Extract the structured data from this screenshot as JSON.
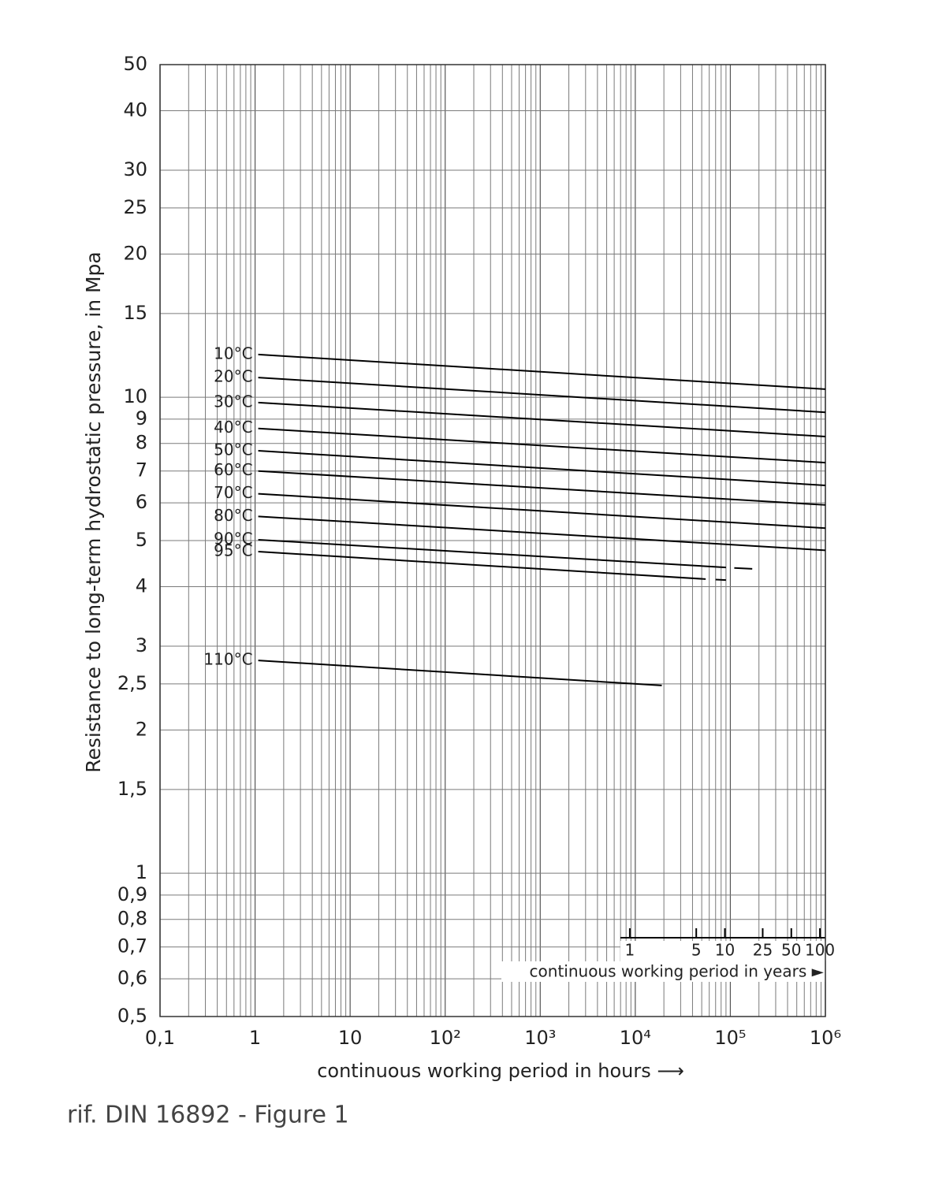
{
  "chart_data": {
    "type": "line",
    "ylabel": "Resistance to long-term hydrostatic pressure, in Mpa",
    "xlabel": "continuous working period in hours ⟶",
    "x2label": "continuous working period in years ►",
    "footer": "rif. DIN 16892 - Figure 1",
    "xscale": "log",
    "yscale": "log",
    "grid": true,
    "xlim": [
      0.1,
      1000000
    ],
    "ylim": [
      0.5,
      50
    ],
    "xticks": [
      {
        "value": 0.1,
        "label": "0,1"
      },
      1,
      10,
      {
        "value": 100,
        "label": "10²"
      },
      {
        "value": 1000,
        "label": "10³"
      },
      {
        "value": 10000,
        "label": "10⁴"
      },
      {
        "value": 100000,
        "label": "10⁵"
      },
      {
        "value": 1000000,
        "label": "10⁶"
      }
    ],
    "xminorticks": [
      0.2,
      0.3,
      0.4,
      0.5,
      0.6,
      0.7,
      0.8,
      0.9,
      2,
      3,
      4,
      5,
      6,
      7,
      8,
      9,
      20,
      30,
      40,
      50,
      60,
      70,
      80,
      90,
      200,
      300,
      400,
      500,
      600,
      700,
      800,
      900,
      2000,
      3000,
      4000,
      5000,
      6000,
      7000,
      8000,
      9000,
      20000,
      30000,
      40000,
      50000,
      60000,
      70000,
      80000,
      90000,
      200000,
      300000,
      400000,
      500000,
      600000,
      700000,
      800000,
      900000
    ],
    "yticks": [
      50,
      40,
      30,
      25,
      20,
      15,
      10,
      9,
      8,
      7,
      6,
      5,
      4,
      3,
      {
        "value": 2.5,
        "label": "2,5"
      },
      2,
      {
        "value": 1.5,
        "label": "1,5"
      },
      1,
      {
        "value": 0.9,
        "label": "0,9"
      },
      {
        "value": 0.8,
        "label": "0,8"
      },
      {
        "value": 0.7,
        "label": "0,7"
      },
      {
        "value": 0.6,
        "label": "0,6"
      },
      {
        "value": 0.5,
        "label": "0,5"
      }
    ],
    "x2lim": [
      1.14155e-05,
      114.155
    ],
    "x2ticks": [
      1,
      5,
      10,
      25,
      50,
      100
    ],
    "series": [
      {
        "name": "10°C",
        "color": "#000000",
        "x": [
          1,
          1000000
        ],
        "values": [
          12.3,
          10.4
        ]
      },
      {
        "name": "20°C",
        "color": "#000000",
        "x": [
          1,
          1000000
        ],
        "values": [
          11.0,
          9.3
        ]
      },
      {
        "name": "30°C",
        "color": "#000000",
        "x": [
          1,
          1000000
        ],
        "values": [
          9.75,
          8.27
        ]
      },
      {
        "name": "40°C",
        "color": "#000000",
        "x": [
          1,
          1000000
        ],
        "values": [
          8.6,
          7.29
        ]
      },
      {
        "name": "50°C",
        "color": "#000000",
        "x": [
          1,
          1000000
        ],
        "values": [
          7.72,
          6.53
        ]
      },
      {
        "name": "60°C",
        "color": "#000000",
        "x": [
          1,
          1000000
        ],
        "values": [
          7.0,
          5.94
        ]
      },
      {
        "name": "70°C",
        "color": "#000000",
        "x": [
          1,
          1000000
        ],
        "values": [
          6.27,
          5.31
        ]
      },
      {
        "name": "80°C",
        "color": "#000000",
        "x": [
          1,
          1000000
        ],
        "values": [
          5.62,
          4.77
        ]
      },
      {
        "name": "90°C",
        "color": "#000000",
        "x": [
          1,
          90000,
          100000,
          110000,
          170000
        ],
        "values": [
          5.02,
          4.39,
          null,
          4.38,
          4.36
        ]
      },
      {
        "name": "95°C",
        "color": "#000000",
        "x": [
          1,
          55000,
          62000,
          70000,
          90000
        ],
        "values": [
          4.74,
          4.15,
          null,
          4.14,
          4.13
        ]
      },
      {
        "name": "110°C",
        "color": "#000000",
        "x": [
          1,
          19000
        ],
        "values": [
          2.8,
          2.48
        ]
      }
    ]
  }
}
